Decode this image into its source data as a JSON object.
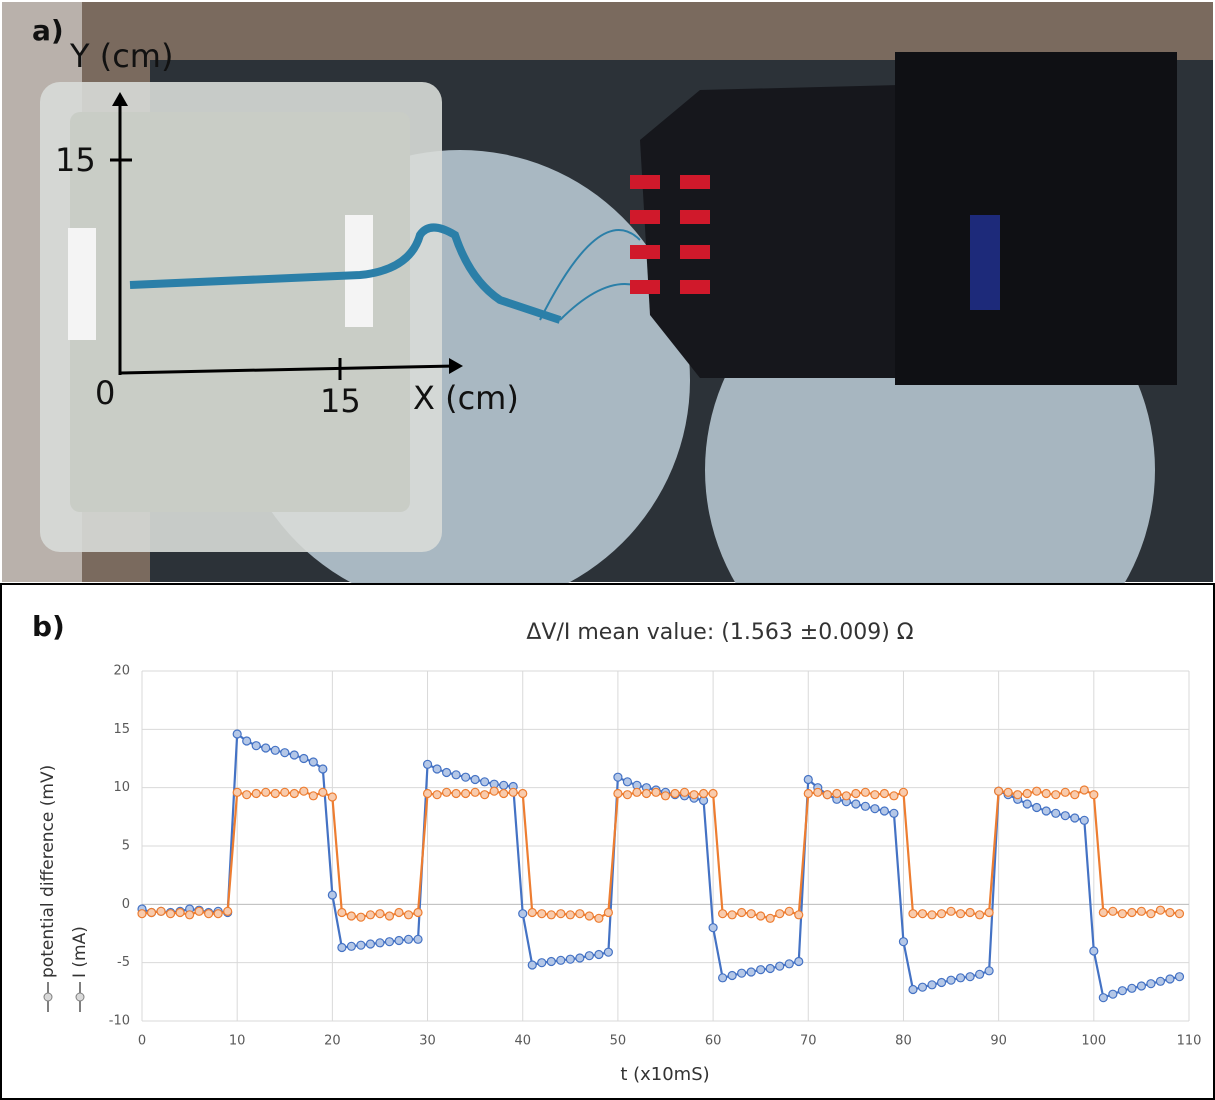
{
  "panel_a": {
    "label": "a)",
    "y_axis_label": "Y (cm)",
    "x_axis_label": "X (cm)",
    "y_tick": "15",
    "origin": "0",
    "x_tick": "15"
  },
  "chart_data": {
    "type": "line",
    "panel_label": "b)",
    "title": "ΔV/I mean value: (1.563 ±0.009) Ω",
    "x_label": "t (x10mS)",
    "x": [
      0,
      1,
      2,
      3,
      4,
      5,
      6,
      7,
      8,
      9,
      10,
      11,
      12,
      13,
      14,
      15,
      16,
      17,
      18,
      19,
      20,
      21,
      22,
      23,
      24,
      25,
      26,
      27,
      28,
      29,
      30,
      31,
      32,
      33,
      34,
      35,
      36,
      37,
      38,
      39,
      40,
      41,
      42,
      43,
      44,
      45,
      46,
      47,
      48,
      49,
      50,
      51,
      52,
      53,
      54,
      55,
      56,
      57,
      58,
      59,
      60,
      61,
      62,
      63,
      64,
      65,
      66,
      67,
      68,
      69,
      70,
      71,
      72,
      73,
      74,
      75,
      76,
      77,
      78,
      79,
      80,
      81,
      82,
      83,
      84,
      85,
      86,
      87,
      88,
      89,
      90,
      91,
      92,
      93,
      94,
      95,
      96,
      97,
      98,
      99,
      100,
      101,
      102,
      103,
      104,
      105,
      106,
      107,
      108,
      109
    ],
    "series": [
      {
        "name": "potential difference (mV)",
        "color": "#4472c4",
        "values": [
          -0.4,
          -0.7,
          -0.6,
          -0.7,
          -0.6,
          -0.4,
          -0.5,
          -0.7,
          -0.6,
          -0.7,
          14.6,
          14.0,
          13.6,
          13.4,
          13.2,
          13.0,
          12.8,
          12.5,
          12.2,
          11.6,
          0.8,
          -3.7,
          -3.6,
          -3.5,
          -3.4,
          -3.3,
          -3.2,
          -3.1,
          -3.0,
          -3.0,
          12.0,
          11.6,
          11.3,
          11.1,
          10.9,
          10.7,
          10.5,
          10.3,
          10.2,
          10.1,
          -0.8,
          -5.2,
          -5.0,
          -4.9,
          -4.8,
          -4.7,
          -4.6,
          -4.4,
          -4.3,
          -4.1,
          10.9,
          10.5,
          10.2,
          10.0,
          9.8,
          9.6,
          9.4,
          9.3,
          9.1,
          8.9,
          -2.0,
          -6.3,
          -6.1,
          -5.9,
          -5.8,
          -5.6,
          -5.5,
          -5.3,
          -5.1,
          -4.9,
          10.7,
          10.0,
          9.4,
          9.0,
          8.8,
          8.6,
          8.4,
          8.2,
          8.0,
          7.8,
          -3.2,
          -7.3,
          -7.1,
          -6.9,
          -6.7,
          -6.5,
          -6.3,
          -6.2,
          -6.0,
          -5.7,
          9.7,
          9.4,
          9.0,
          8.6,
          8.3,
          8.0,
          7.8,
          7.6,
          7.4,
          7.2,
          -4.0,
          -8.0,
          -7.7,
          -7.4,
          -7.2,
          -7.0,
          -6.8,
          -6.6,
          -6.4,
          -6.2
        ]
      },
      {
        "name": "I (mA)",
        "color": "#ed7d31",
        "values": [
          -0.8,
          -0.7,
          -0.6,
          -0.8,
          -0.7,
          -0.9,
          -0.6,
          -0.8,
          -0.8,
          -0.6,
          9.6,
          9.4,
          9.5,
          9.6,
          9.5,
          9.6,
          9.5,
          9.7,
          9.3,
          9.6,
          9.2,
          -0.7,
          -1.0,
          -1.1,
          -0.9,
          -0.8,
          -1.0,
          -0.7,
          -0.9,
          -0.7,
          9.5,
          9.4,
          9.6,
          9.5,
          9.5,
          9.6,
          9.4,
          9.7,
          9.5,
          9.6,
          9.5,
          -0.7,
          -0.8,
          -0.9,
          -0.8,
          -0.9,
          -0.8,
          -1.0,
          -1.2,
          -0.7,
          9.5,
          9.4,
          9.6,
          9.5,
          9.6,
          9.3,
          9.5,
          9.6,
          9.4,
          9.5,
          9.5,
          -0.8,
          -0.9,
          -0.7,
          -0.8,
          -1.0,
          -1.2,
          -0.8,
          -0.6,
          -0.9,
          9.5,
          9.6,
          9.4,
          9.5,
          9.3,
          9.5,
          9.6,
          9.4,
          9.5,
          9.3,
          9.6,
          -0.8,
          -0.8,
          -0.9,
          -0.8,
          -0.6,
          -0.8,
          -0.7,
          -0.9,
          -0.7,
          9.7,
          9.6,
          9.4,
          9.5,
          9.7,
          9.5,
          9.4,
          9.6,
          9.4,
          9.8,
          9.4,
          -0.7,
          -0.6,
          -0.8,
          -0.7,
          -0.6,
          -0.8,
          -0.5,
          -0.7,
          -0.8
        ]
      }
    ],
    "xlim": [
      0,
      110
    ],
    "xticks": [
      0,
      10,
      20,
      30,
      40,
      50,
      60,
      70,
      80,
      90,
      100,
      110
    ],
    "ylim": [
      -10,
      20
    ],
    "yticks": [
      -10,
      -5,
      0,
      5,
      10,
      15,
      20
    ],
    "grid": true
  }
}
